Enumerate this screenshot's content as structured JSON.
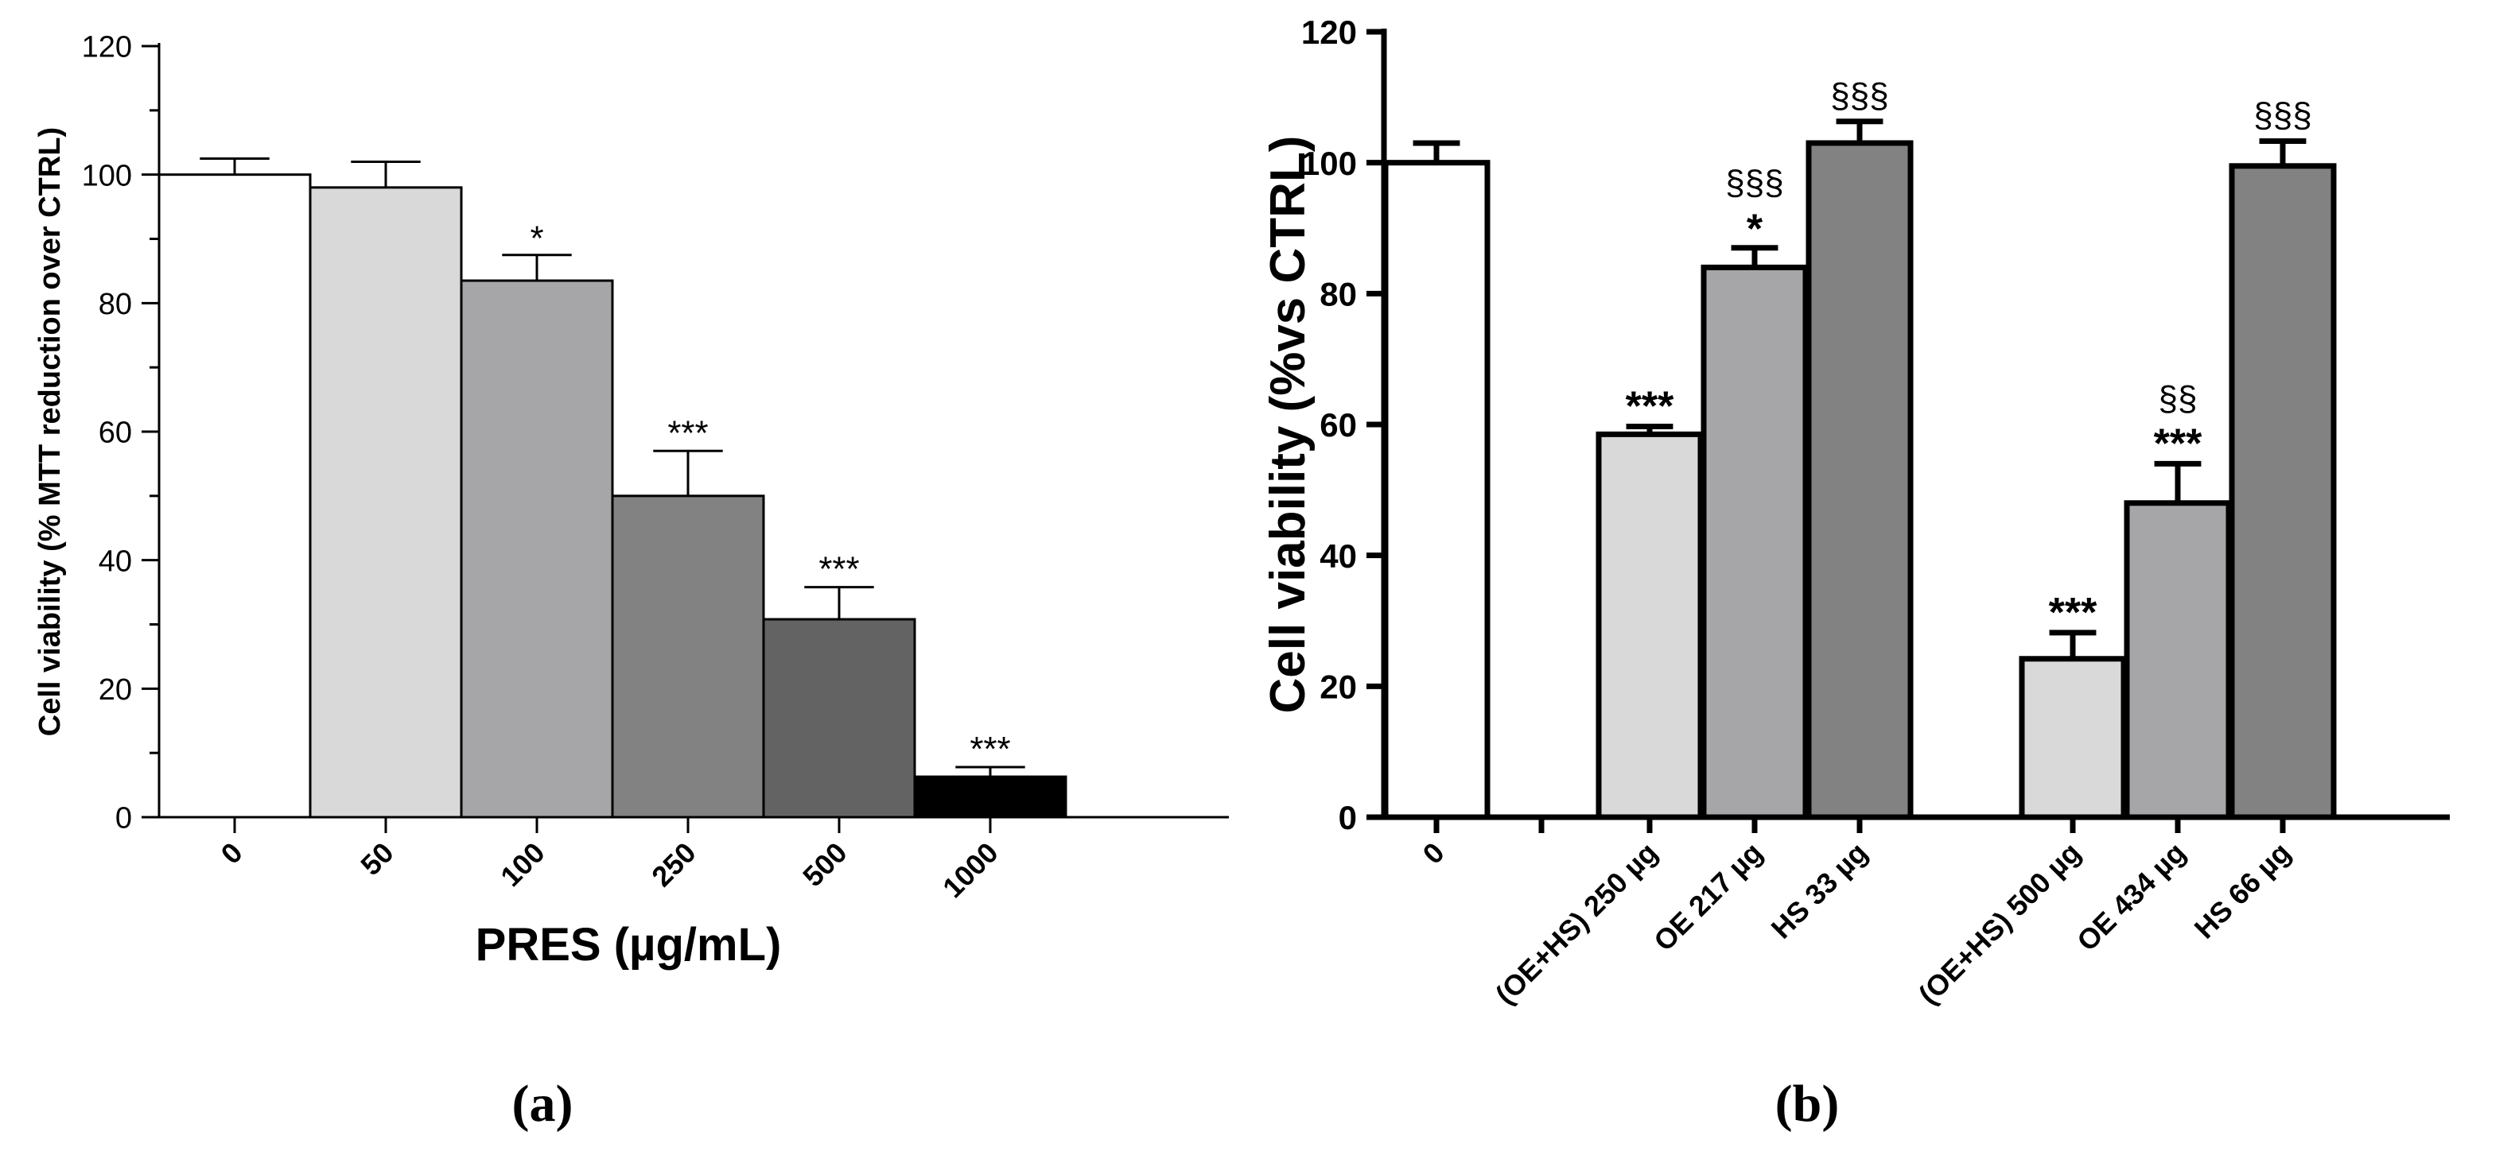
{
  "chart_data": [
    {
      "type": "bar",
      "panel_label": "(a)",
      "title": "",
      "xlabel": "PRES (µg/mL)",
      "ylabel": "Cell viability (% MTT reduction over CTRL)",
      "ylim": [
        0,
        120
      ],
      "yticks": [
        "0",
        "20",
        "40",
        "60",
        "80",
        "100",
        "120"
      ],
      "categories": [
        "0",
        "50",
        "100",
        "250",
        "500",
        "1000"
      ],
      "values": [
        100,
        98,
        83.5,
        50,
        30.8,
        6.3
      ],
      "errors": [
        2.5,
        4,
        4,
        7,
        5,
        1.5
      ],
      "annotations": [
        "",
        "",
        "*",
        "***",
        "***",
        "***"
      ],
      "colors": [
        "#ffffff",
        "#d9d9d9",
        "#a6a6a8",
        "#828282",
        "#636363",
        "#000000"
      ],
      "grid": false,
      "legend": "none"
    },
    {
      "type": "bar",
      "panel_label": "(b)",
      "title": "",
      "xlabel": "",
      "ylabel": "Cell viability (%vs CTRL)",
      "ylim": [
        0,
        120
      ],
      "yticks": [
        "0",
        "20",
        "40",
        "60",
        "80",
        "100",
        "120"
      ],
      "categories": [
        "0",
        "(OE+HS) 250 µg",
        "OE 217 µg",
        "HS 33 µg",
        "(OE+HS) 500 µg",
        "OE 434 µg",
        "HS 66 µg"
      ],
      "values": [
        100,
        58.5,
        84,
        103,
        24.2,
        48,
        99.5
      ],
      "errors": [
        3,
        1.2,
        3,
        3.3,
        4,
        6,
        3.8
      ],
      "annotations": [
        "",
        "***",
        "*",
        "",
        "***",
        "***",
        ""
      ],
      "annotations_top": [
        "",
        "",
        "§§§",
        "§§§",
        "",
        "§§",
        "§§§"
      ],
      "colors": [
        "#ffffff",
        "#d9d9d9",
        "#a6a6a8",
        "#828282",
        "#d9d9d9",
        "#a6a6a8",
        "#828282"
      ],
      "grid": false,
      "legend": "none"
    }
  ]
}
